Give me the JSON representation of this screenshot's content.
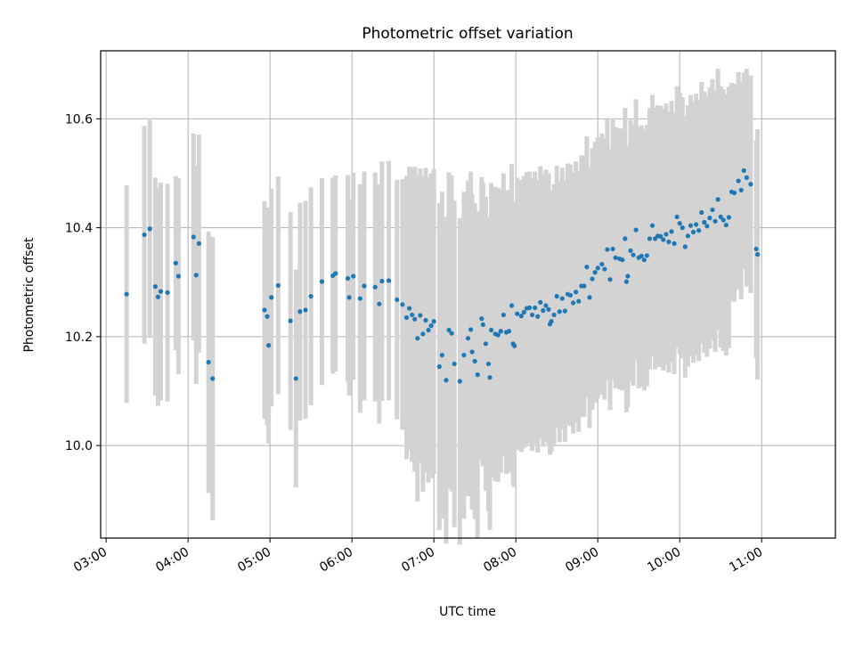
{
  "chart_data": {
    "type": "scatter",
    "title": "Photometric offset variation",
    "xlabel": "UTC time",
    "ylabel": "Photometric offset",
    "x_ticks": [
      "03:00",
      "04:00",
      "05:00",
      "06:00",
      "07:00",
      "08:00",
      "09:00",
      "10:00",
      "11:00"
    ],
    "y_ticks": [
      "10.0",
      "10.2",
      "10.4",
      "10.6"
    ],
    "xlim": [
      "02:56",
      "11:54"
    ],
    "ylim": [
      9.83,
      10.725
    ],
    "grid": true,
    "marker_color": "#1f77b4",
    "errorbar_color": "#d3d3d3",
    "points": [
      [
        "03:15",
        10.278,
        0.2
      ],
      [
        "03:28",
        10.387,
        0.2
      ],
      [
        "03:32",
        10.398,
        0.2
      ],
      [
        "03:36",
        10.292,
        0.2
      ],
      [
        "03:38",
        10.273,
        0.2
      ],
      [
        "03:40",
        10.283,
        0.2
      ],
      [
        "03:45",
        10.281,
        0.2
      ],
      [
        "03:51",
        10.335,
        0.16
      ],
      [
        "03:53",
        10.311,
        0.18
      ],
      [
        "04:04",
        10.383,
        0.19
      ],
      [
        "04:06",
        10.313,
        0.2
      ],
      [
        "04:08",
        10.371,
        0.2
      ],
      [
        "04:15",
        10.153,
        0.24
      ],
      [
        "04:18",
        10.123,
        0.26
      ],
      [
        "04:56",
        10.249,
        0.2
      ],
      [
        "04:58",
        10.237,
        0.2
      ],
      [
        "04:59",
        10.184,
        0.18
      ],
      [
        "05:01",
        10.272,
        0.2
      ],
      [
        "05:06",
        10.294,
        0.2
      ],
      [
        "05:15",
        10.229,
        0.2
      ],
      [
        "05:19",
        10.123,
        0.2
      ],
      [
        "05:22",
        10.246,
        0.2
      ],
      [
        "05:26",
        10.249,
        0.2
      ],
      [
        "05:30",
        10.274,
        0.2
      ],
      [
        "05:38",
        10.301,
        0.19
      ],
      [
        "05:46",
        10.312,
        0.18
      ],
      [
        "05:48",
        10.316,
        0.18
      ],
      [
        "05:57",
        10.307,
        0.19
      ],
      [
        "05:58",
        10.272,
        0.18
      ],
      [
        "06:01",
        10.311,
        0.19
      ],
      [
        "06:06",
        10.27,
        0.21
      ],
      [
        "06:09",
        10.293,
        0.21
      ],
      [
        "06:17",
        10.291,
        0.21
      ],
      [
        "06:20",
        10.26,
        0.22
      ],
      [
        "06:22",
        10.302,
        0.22
      ],
      [
        "06:27",
        10.303,
        0.22
      ],
      [
        "06:33",
        10.268,
        0.22
      ],
      [
        "06:37",
        10.259,
        0.23
      ],
      [
        "06:40",
        10.235,
        0.26
      ],
      [
        "06:42",
        10.252,
        0.26
      ],
      [
        "06:44",
        10.24,
        0.27
      ],
      [
        "06:46",
        10.232,
        0.28
      ],
      [
        "06:48",
        10.197,
        0.3
      ],
      [
        "06:50",
        10.239,
        0.27
      ],
      [
        "06:52",
        10.205,
        0.29
      ],
      [
        "06:54",
        10.23,
        0.28
      ],
      [
        "06:56",
        10.212,
        0.28
      ],
      [
        "06:58",
        10.22,
        0.28
      ],
      [
        "07:00",
        10.228,
        0.28
      ],
      [
        "07:04",
        10.145,
        0.3
      ],
      [
        "07:06",
        10.166,
        0.3
      ],
      [
        "07:09",
        10.12,
        0.3
      ],
      [
        "07:11",
        10.212,
        0.29
      ],
      [
        "07:13",
        10.206,
        0.29
      ],
      [
        "07:15",
        10.15,
        0.3
      ],
      [
        "07:19",
        10.118,
        0.3
      ],
      [
        "07:22",
        10.166,
        0.3
      ],
      [
        "07:25",
        10.197,
        0.29
      ],
      [
        "07:27",
        10.213,
        0.29
      ],
      [
        "07:28",
        10.172,
        0.29
      ],
      [
        "07:30",
        10.155,
        0.29
      ],
      [
        "07:32",
        10.13,
        0.3
      ],
      [
        "07:35",
        10.233,
        0.26
      ],
      [
        "07:36",
        10.222,
        0.26
      ],
      [
        "07:38",
        10.187,
        0.27
      ],
      [
        "07:40",
        10.15,
        0.27
      ],
      [
        "07:41",
        10.125,
        0.28
      ],
      [
        "07:42",
        10.212,
        0.27
      ],
      [
        "07:45",
        10.205,
        0.27
      ],
      [
        "07:47",
        10.203,
        0.27
      ],
      [
        "07:49",
        10.21,
        0.26
      ],
      [
        "07:51",
        10.24,
        0.26
      ],
      [
        "07:53",
        10.208,
        0.26
      ],
      [
        "07:55",
        10.21,
        0.26
      ],
      [
        "07:57",
        10.257,
        0.26
      ],
      [
        "07:58",
        10.187,
        0.26
      ],
      [
        "07:59",
        10.183,
        0.26
      ],
      [
        "08:01",
        10.242,
        0.25
      ],
      [
        "08:04",
        10.238,
        0.25
      ],
      [
        "08:06",
        10.245,
        0.25
      ],
      [
        "08:08",
        10.252,
        0.25
      ],
      [
        "08:10",
        10.253,
        0.25
      ],
      [
        "08:12",
        10.24,
        0.25
      ],
      [
        "08:14",
        10.253,
        0.25
      ],
      [
        "08:16",
        10.237,
        0.25
      ],
      [
        "08:18",
        10.263,
        0.25
      ],
      [
        "08:20",
        10.248,
        0.25
      ],
      [
        "08:22",
        10.257,
        0.25
      ],
      [
        "08:24",
        10.25,
        0.25
      ],
      [
        "08:25",
        10.223,
        0.24
      ],
      [
        "08:26",
        10.228,
        0.24
      ],
      [
        "08:28",
        10.24,
        0.24
      ],
      [
        "08:30",
        10.274,
        0.24
      ],
      [
        "08:32",
        10.246,
        0.24
      ],
      [
        "08:34",
        10.27,
        0.24
      ],
      [
        "08:36",
        10.247,
        0.24
      ],
      [
        "08:38",
        10.278,
        0.24
      ],
      [
        "08:40",
        10.276,
        0.24
      ],
      [
        "08:42",
        10.262,
        0.24
      ],
      [
        "08:44",
        10.282,
        0.24
      ],
      [
        "08:46",
        10.265,
        0.24
      ],
      [
        "08:48",
        10.293,
        0.24
      ],
      [
        "08:50",
        10.293,
        0.24
      ],
      [
        "08:52",
        10.328,
        0.24
      ],
      [
        "08:54",
        10.272,
        0.24
      ],
      [
        "08:56",
        10.306,
        0.24
      ],
      [
        "08:58",
        10.318,
        0.24
      ],
      [
        "09:00",
        10.326,
        0.24
      ],
      [
        "09:03",
        10.333,
        0.24
      ],
      [
        "09:05",
        10.324,
        0.24
      ],
      [
        "09:07",
        10.36,
        0.24
      ],
      [
        "09:09",
        10.305,
        0.24
      ],
      [
        "09:11",
        10.361,
        0.24
      ],
      [
        "09:13",
        10.345,
        0.24
      ],
      [
        "09:16",
        10.343,
        0.24
      ],
      [
        "09:18",
        10.341,
        0.24
      ],
      [
        "09:20",
        10.38,
        0.24
      ],
      [
        "09:21",
        10.301,
        0.24
      ],
      [
        "09:22",
        10.311,
        0.24
      ],
      [
        "09:24",
        10.358,
        0.24
      ],
      [
        "09:26",
        10.35,
        0.24
      ],
      [
        "09:28",
        10.396,
        0.24
      ],
      [
        "09:30",
        10.345,
        0.24
      ],
      [
        "09:32",
        10.348,
        0.24
      ],
      [
        "09:34",
        10.341,
        0.24
      ],
      [
        "09:36",
        10.349,
        0.24
      ],
      [
        "09:38",
        10.38,
        0.24
      ],
      [
        "09:40",
        10.404,
        0.24
      ],
      [
        "09:42",
        10.38,
        0.24
      ],
      [
        "09:44",
        10.385,
        0.24
      ],
      [
        "09:46",
        10.384,
        0.24
      ],
      [
        "09:48",
        10.378,
        0.24
      ],
      [
        "09:50",
        10.388,
        0.24
      ],
      [
        "09:52",
        10.374,
        0.24
      ],
      [
        "09:54",
        10.393,
        0.24
      ],
      [
        "09:56",
        10.371,
        0.24
      ],
      [
        "09:58",
        10.42,
        0.24
      ],
      [
        "10:00",
        10.408,
        0.24
      ],
      [
        "10:02",
        10.4,
        0.24
      ],
      [
        "10:04",
        10.365,
        0.24
      ],
      [
        "10:06",
        10.385,
        0.24
      ],
      [
        "10:08",
        10.404,
        0.24
      ],
      [
        "10:10",
        10.392,
        0.24
      ],
      [
        "10:12",
        10.406,
        0.24
      ],
      [
        "10:14",
        10.395,
        0.24
      ],
      [
        "10:16",
        10.428,
        0.24
      ],
      [
        "10:18",
        10.41,
        0.24
      ],
      [
        "10:20",
        10.403,
        0.24
      ],
      [
        "10:22",
        10.418,
        0.24
      ],
      [
        "10:24",
        10.433,
        0.24
      ],
      [
        "10:26",
        10.412,
        0.24
      ],
      [
        "10:28",
        10.452,
        0.24
      ],
      [
        "10:30",
        10.42,
        0.24
      ],
      [
        "10:32",
        10.414,
        0.24
      ],
      [
        "10:34",
        10.405,
        0.24
      ],
      [
        "10:36",
        10.419,
        0.24
      ],
      [
        "10:38",
        10.466,
        0.2
      ],
      [
        "10:40",
        10.464,
        0.2
      ],
      [
        "10:43",
        10.486,
        0.2
      ],
      [
        "10:45",
        10.469,
        0.2
      ],
      [
        "10:47",
        10.505,
        0.18
      ],
      [
        "10:49",
        10.492,
        0.2
      ],
      [
        "10:52",
        10.48,
        0.2
      ],
      [
        "10:56",
        10.361,
        0.2
      ],
      [
        "10:57",
        10.351,
        0.23
      ]
    ]
  }
}
